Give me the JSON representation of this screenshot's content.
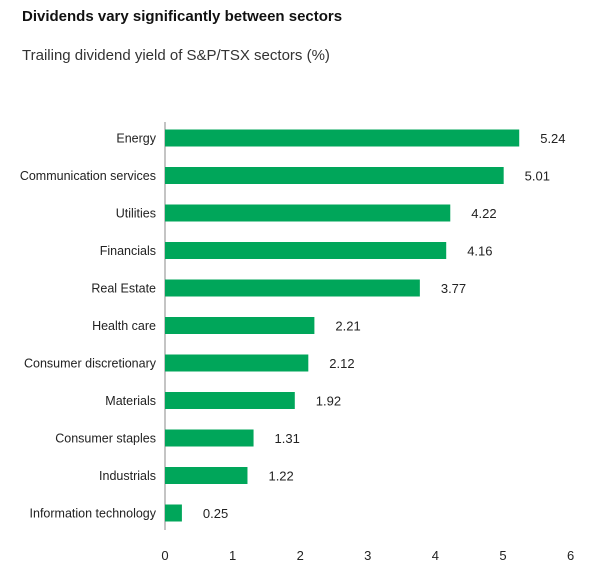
{
  "chart_data": {
    "type": "bar",
    "orientation": "horizontal",
    "title": "Dividends vary significantly between sectors",
    "subtitle": "Trailing dividend yield of S&P/TSX sectors (%)",
    "categories": [
      "Energy",
      "Communication services",
      "Utilities",
      "Financials",
      "Real Estate",
      "Health care",
      "Consumer discretionary",
      "Materials",
      "Consumer staples",
      "Industrials",
      "Information technology"
    ],
    "values": [
      5.24,
      5.01,
      4.22,
      4.16,
      3.77,
      2.21,
      2.12,
      1.92,
      1.31,
      1.22,
      0.25
    ],
    "value_labels": [
      "5.24",
      "5.01",
      "4.22",
      "4.16",
      "3.77",
      "2.21",
      "2.12",
      "1.92",
      "1.31",
      "1.22",
      "0.25"
    ],
    "xlim": [
      0,
      6
    ],
    "xticks": [
      0,
      1,
      2,
      3,
      4,
      5,
      6
    ],
    "xlabel": "",
    "ylabel": "",
    "grid": false,
    "bar_color": "#00a65a"
  }
}
